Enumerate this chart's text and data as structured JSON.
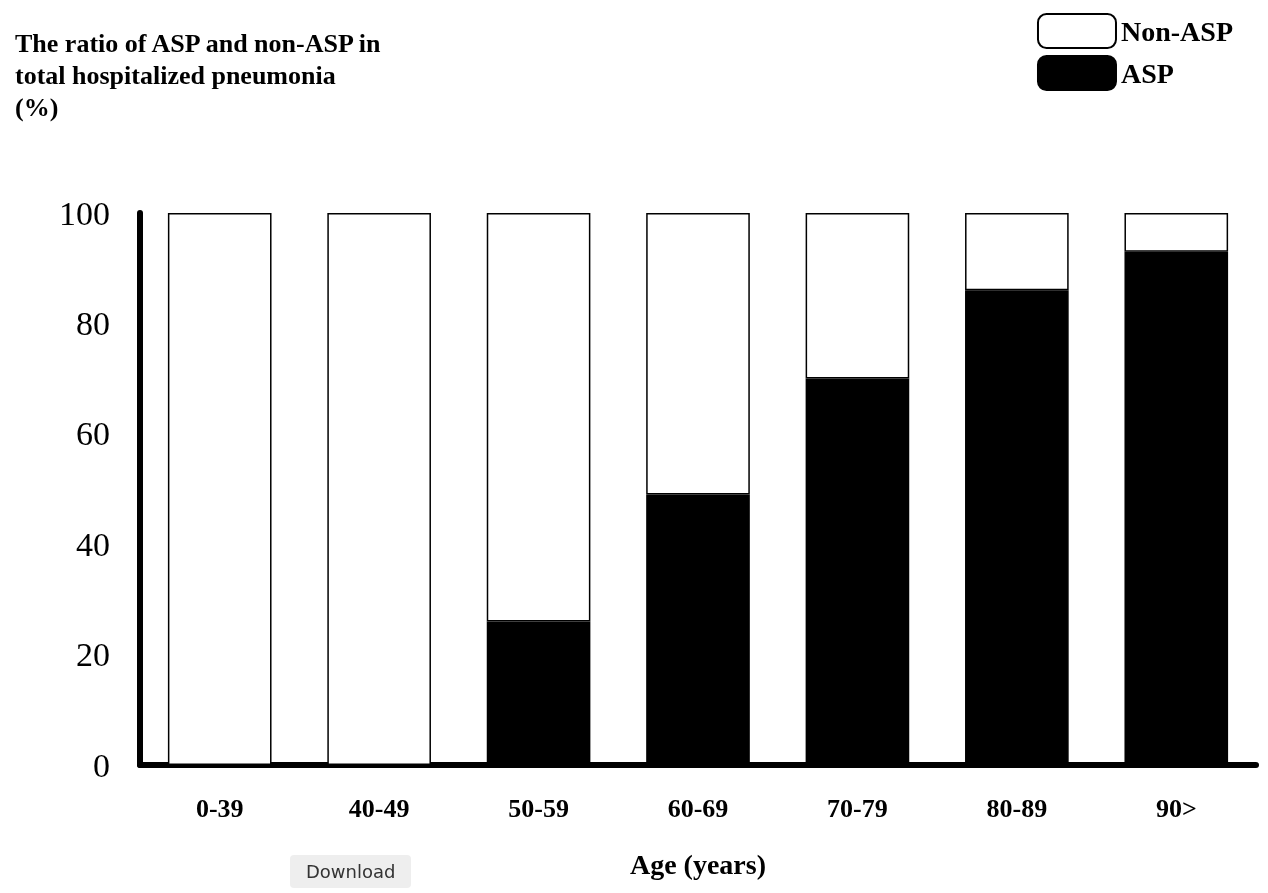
{
  "chart_data": {
    "type": "bar",
    "ylabel": "The ratio of ASP and non-ASP in\ntotal hospitalized pneumonia\n(%)",
    "xlabel": "Age (years)",
    "categories": [
      "0-39",
      "40-49",
      "50-59",
      "60-69",
      "70-79",
      "80-89",
      "90>"
    ],
    "stacked": true,
    "series": [
      {
        "name": "ASP",
        "color": "#000000",
        "values": [
          0,
          0,
          26,
          49,
          70,
          86,
          93
        ]
      },
      {
        "name": "Non-ASP",
        "color": "#ffffff",
        "values": [
          100,
          100,
          74,
          51,
          30,
          14,
          7
        ]
      }
    ],
    "ylim": [
      0,
      100
    ],
    "yticks": [
      0,
      20,
      40,
      60,
      80,
      100
    ],
    "grid": false,
    "legend": "top right",
    "annotations": [
      "Download"
    ]
  }
}
